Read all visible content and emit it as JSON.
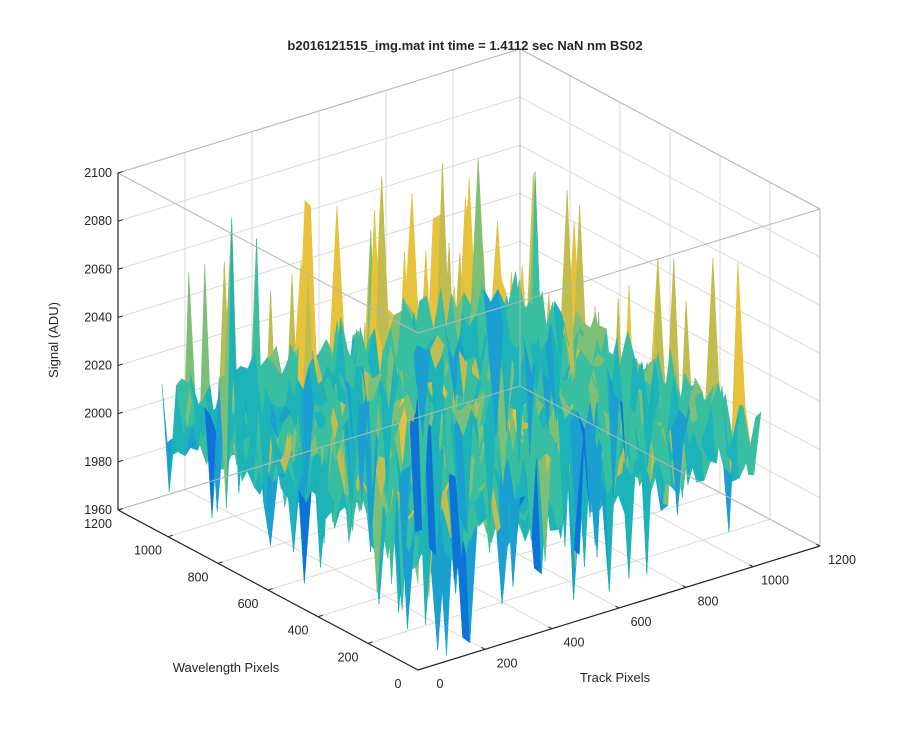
{
  "figure": {
    "background": "#ffffff",
    "axes_color": "#262626",
    "grid_color": "#d9d9d9"
  },
  "chart_data": {
    "type": "surface",
    "title": "b2016121515_img.mat int time = 1.4112 sec  NaN nm BS02",
    "xlabel": "Track Pixels",
    "ylabel": "Wavelength Pixels",
    "zlabel": "Signal (ADU)",
    "xlim": [
      0,
      1200
    ],
    "ylim": [
      0,
      1200
    ],
    "zlim": [
      1960,
      2100
    ],
    "x_ticks": [
      0,
      200,
      400,
      600,
      800,
      1000,
      1200
    ],
    "y_ticks": [
      0,
      200,
      400,
      600,
      800,
      1000,
      1200
    ],
    "z_ticks": [
      1960,
      1980,
      2000,
      2020,
      2040,
      2060,
      2080,
      2100
    ],
    "x_tick_labels": [
      "0",
      "200",
      "400",
      "600",
      "800",
      "1000",
      "1200"
    ],
    "y_tick_labels": [
      "0",
      "200",
      "400",
      "600",
      "800",
      "1000",
      "1200"
    ],
    "z_tick_labels": [
      "1960",
      "1980",
      "2000",
      "2020",
      "2040",
      "2060",
      "2080",
      "2100"
    ],
    "data_extent": {
      "x": [
        0,
        1024
      ],
      "y": [
        0,
        1024
      ]
    },
    "signal": {
      "mean": 2010,
      "typical_range": [
        1985,
        2040
      ],
      "max_spike": 2085,
      "min_spike": 1960
    },
    "colormap": "parula",
    "colormap_colors": [
      "#0d73d9",
      "#1b9fd0",
      "#1cb3b9",
      "#38bea0",
      "#7cc078",
      "#c0bc4f",
      "#e8c23a"
    ],
    "grid": true,
    "box": "full"
  }
}
